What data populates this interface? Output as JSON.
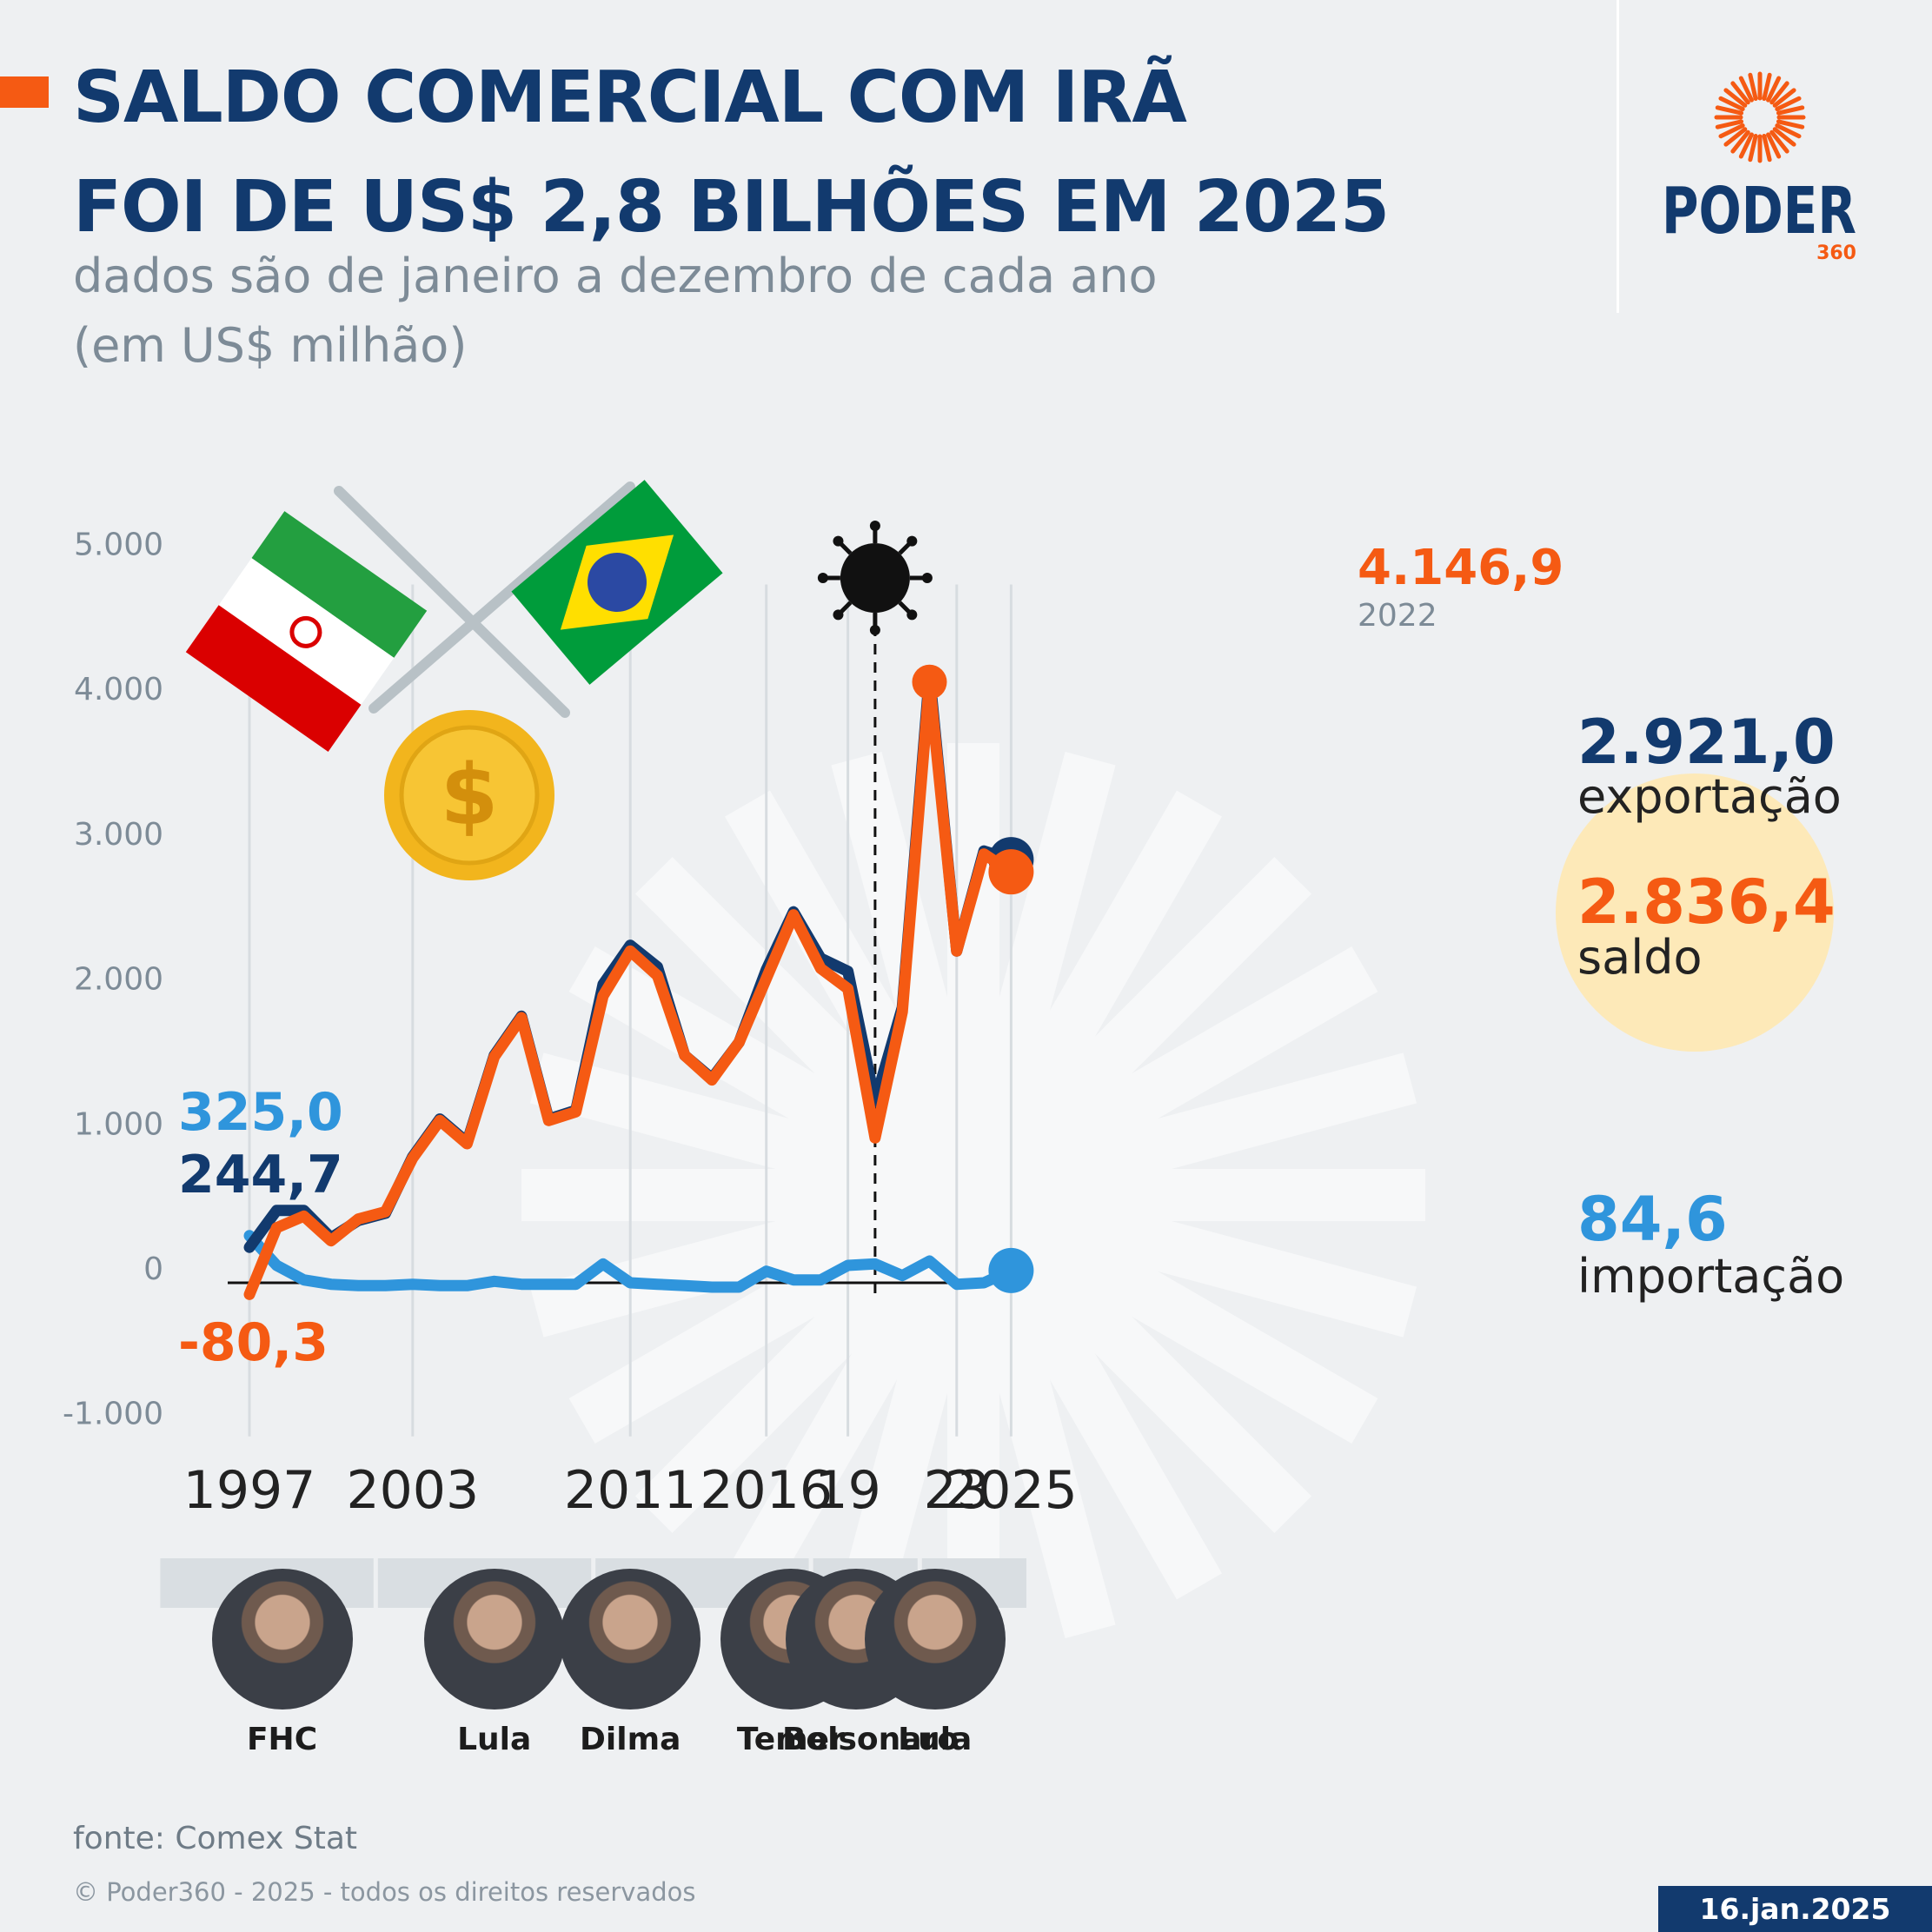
{
  "header": {
    "title_line1": "SALDO COMERCIAL COM IRÃ",
    "title_line2": "FOI DE US$ 2,8 BILHÕES EM 2025",
    "subtitle_line1": "dados são de janeiro a dezembro de cada ano",
    "subtitle_line2": "(em US$ milhão)"
  },
  "logo": {
    "name": "PODER",
    "suffix": "360",
    "icon": "sun-burst-icon"
  },
  "colors": {
    "saldo": "#f55a13",
    "exportacao": "#123a6e",
    "importacao": "#2f95dc",
    "accent": "#f55a13",
    "highlight": "#fde9b8"
  },
  "chart_data": {
    "type": "line",
    "title": "SALDO COMERCIAL COM IRÃ FOI DE US$ 2,8 BILHÕES EM 2025",
    "subtitle": "dados são de janeiro a dezembro de cada ano (em US$ milhão)",
    "x": [
      1997,
      1998,
      1999,
      2000,
      2001,
      2002,
      2003,
      2004,
      2005,
      2006,
      2007,
      2008,
      2009,
      2010,
      2011,
      2012,
      2013,
      2014,
      2015,
      2016,
      2017,
      2018,
      2019,
      2020,
      2021,
      2022,
      2023,
      2024,
      2025
    ],
    "x_tick_labels": [
      {
        "year": 1997,
        "label": "1997"
      },
      {
        "year": 2003,
        "label": "2003"
      },
      {
        "year": 2011,
        "label": "2011"
      },
      {
        "year": 2016,
        "label": "2016"
      },
      {
        "year": 2019,
        "label": "19"
      },
      {
        "year": 2023,
        "label": "23"
      },
      {
        "year": 2025,
        "label": "2025"
      }
    ],
    "gridline_years": [
      1997,
      2003,
      2011,
      2016,
      2019,
      2023,
      2025
    ],
    "ylim": [
      -1000,
      5000
    ],
    "y_ticks": [
      -1000,
      0,
      1000,
      2000,
      3000,
      4000,
      5000
    ],
    "y_tick_labels": [
      "-1.000",
      "0",
      "1.000",
      "2.000",
      "3.000",
      "4.000",
      "5.000"
    ],
    "series": [
      {
        "key": "exportacao",
        "name": "exportação",
        "values": [
          244.7,
          500,
          500,
          310,
          430,
          480,
          870,
          1130,
          970,
          1570,
          1840,
          1130,
          1190,
          2060,
          2330,
          2180,
          1570,
          1410,
          1660,
          2160,
          2560,
          2240,
          2150,
          1250,
          1900,
          4200,
          2290,
          2980,
          2921.0
        ],
        "start_label": "244,7",
        "end_label": "2.921,0"
      },
      {
        "key": "saldo",
        "name": "saldo",
        "values": [
          -80.3,
          380,
          460,
          290,
          440,
          490,
          860,
          1120,
          960,
          1560,
          1830,
          1120,
          1180,
          1980,
          2290,
          2120,
          1570,
          1400,
          1660,
          2100,
          2540,
          2170,
          2030,
          1000,
          1870,
          4146.9,
          2290,
          2960,
          2836.4
        ],
        "start_label": "-80,3",
        "end_label": "2.836,4"
      },
      {
        "key": "importacao",
        "name": "importação",
        "values": [
          325.0,
          120,
          20,
          -10,
          -20,
          -20,
          -10,
          -20,
          -20,
          10,
          -10,
          -10,
          -10,
          130,
          0,
          -10,
          -20,
          -30,
          -30,
          80,
          20,
          20,
          120,
          130,
          50,
          150,
          -10,
          0,
          84.6
        ],
        "start_label": "325,0",
        "end_label": "84,6"
      }
    ],
    "annotation": {
      "year": 2020,
      "icon": "virus-icon",
      "peak_value_label": "4.146,9",
      "peak_year_label": "2022"
    },
    "presidents": [
      {
        "name": "FHC",
        "year": 1998.2,
        "span": [
          1995,
          2002
        ]
      },
      {
        "name": "Lula",
        "year": 2006.0,
        "span": [
          2003,
          2010
        ]
      },
      {
        "name": "Dilma",
        "year": 2011.0,
        "span": [
          2011,
          2016
        ]
      },
      {
        "name": "Temer",
        "year": 2016.9,
        "span": [
          2016,
          2018
        ]
      },
      {
        "name": "Bolsonaro",
        "year": 2019.3,
        "span": [
          2019,
          2022
        ]
      },
      {
        "name": "Lula",
        "year": 2022.2,
        "span": [
          2023,
          2026
        ]
      }
    ]
  },
  "footer": {
    "source": "fonte: Comex Stat",
    "copyright": "© Poder360 - 2025 - todos os direitos reservados",
    "date": "16.jan.2025"
  }
}
